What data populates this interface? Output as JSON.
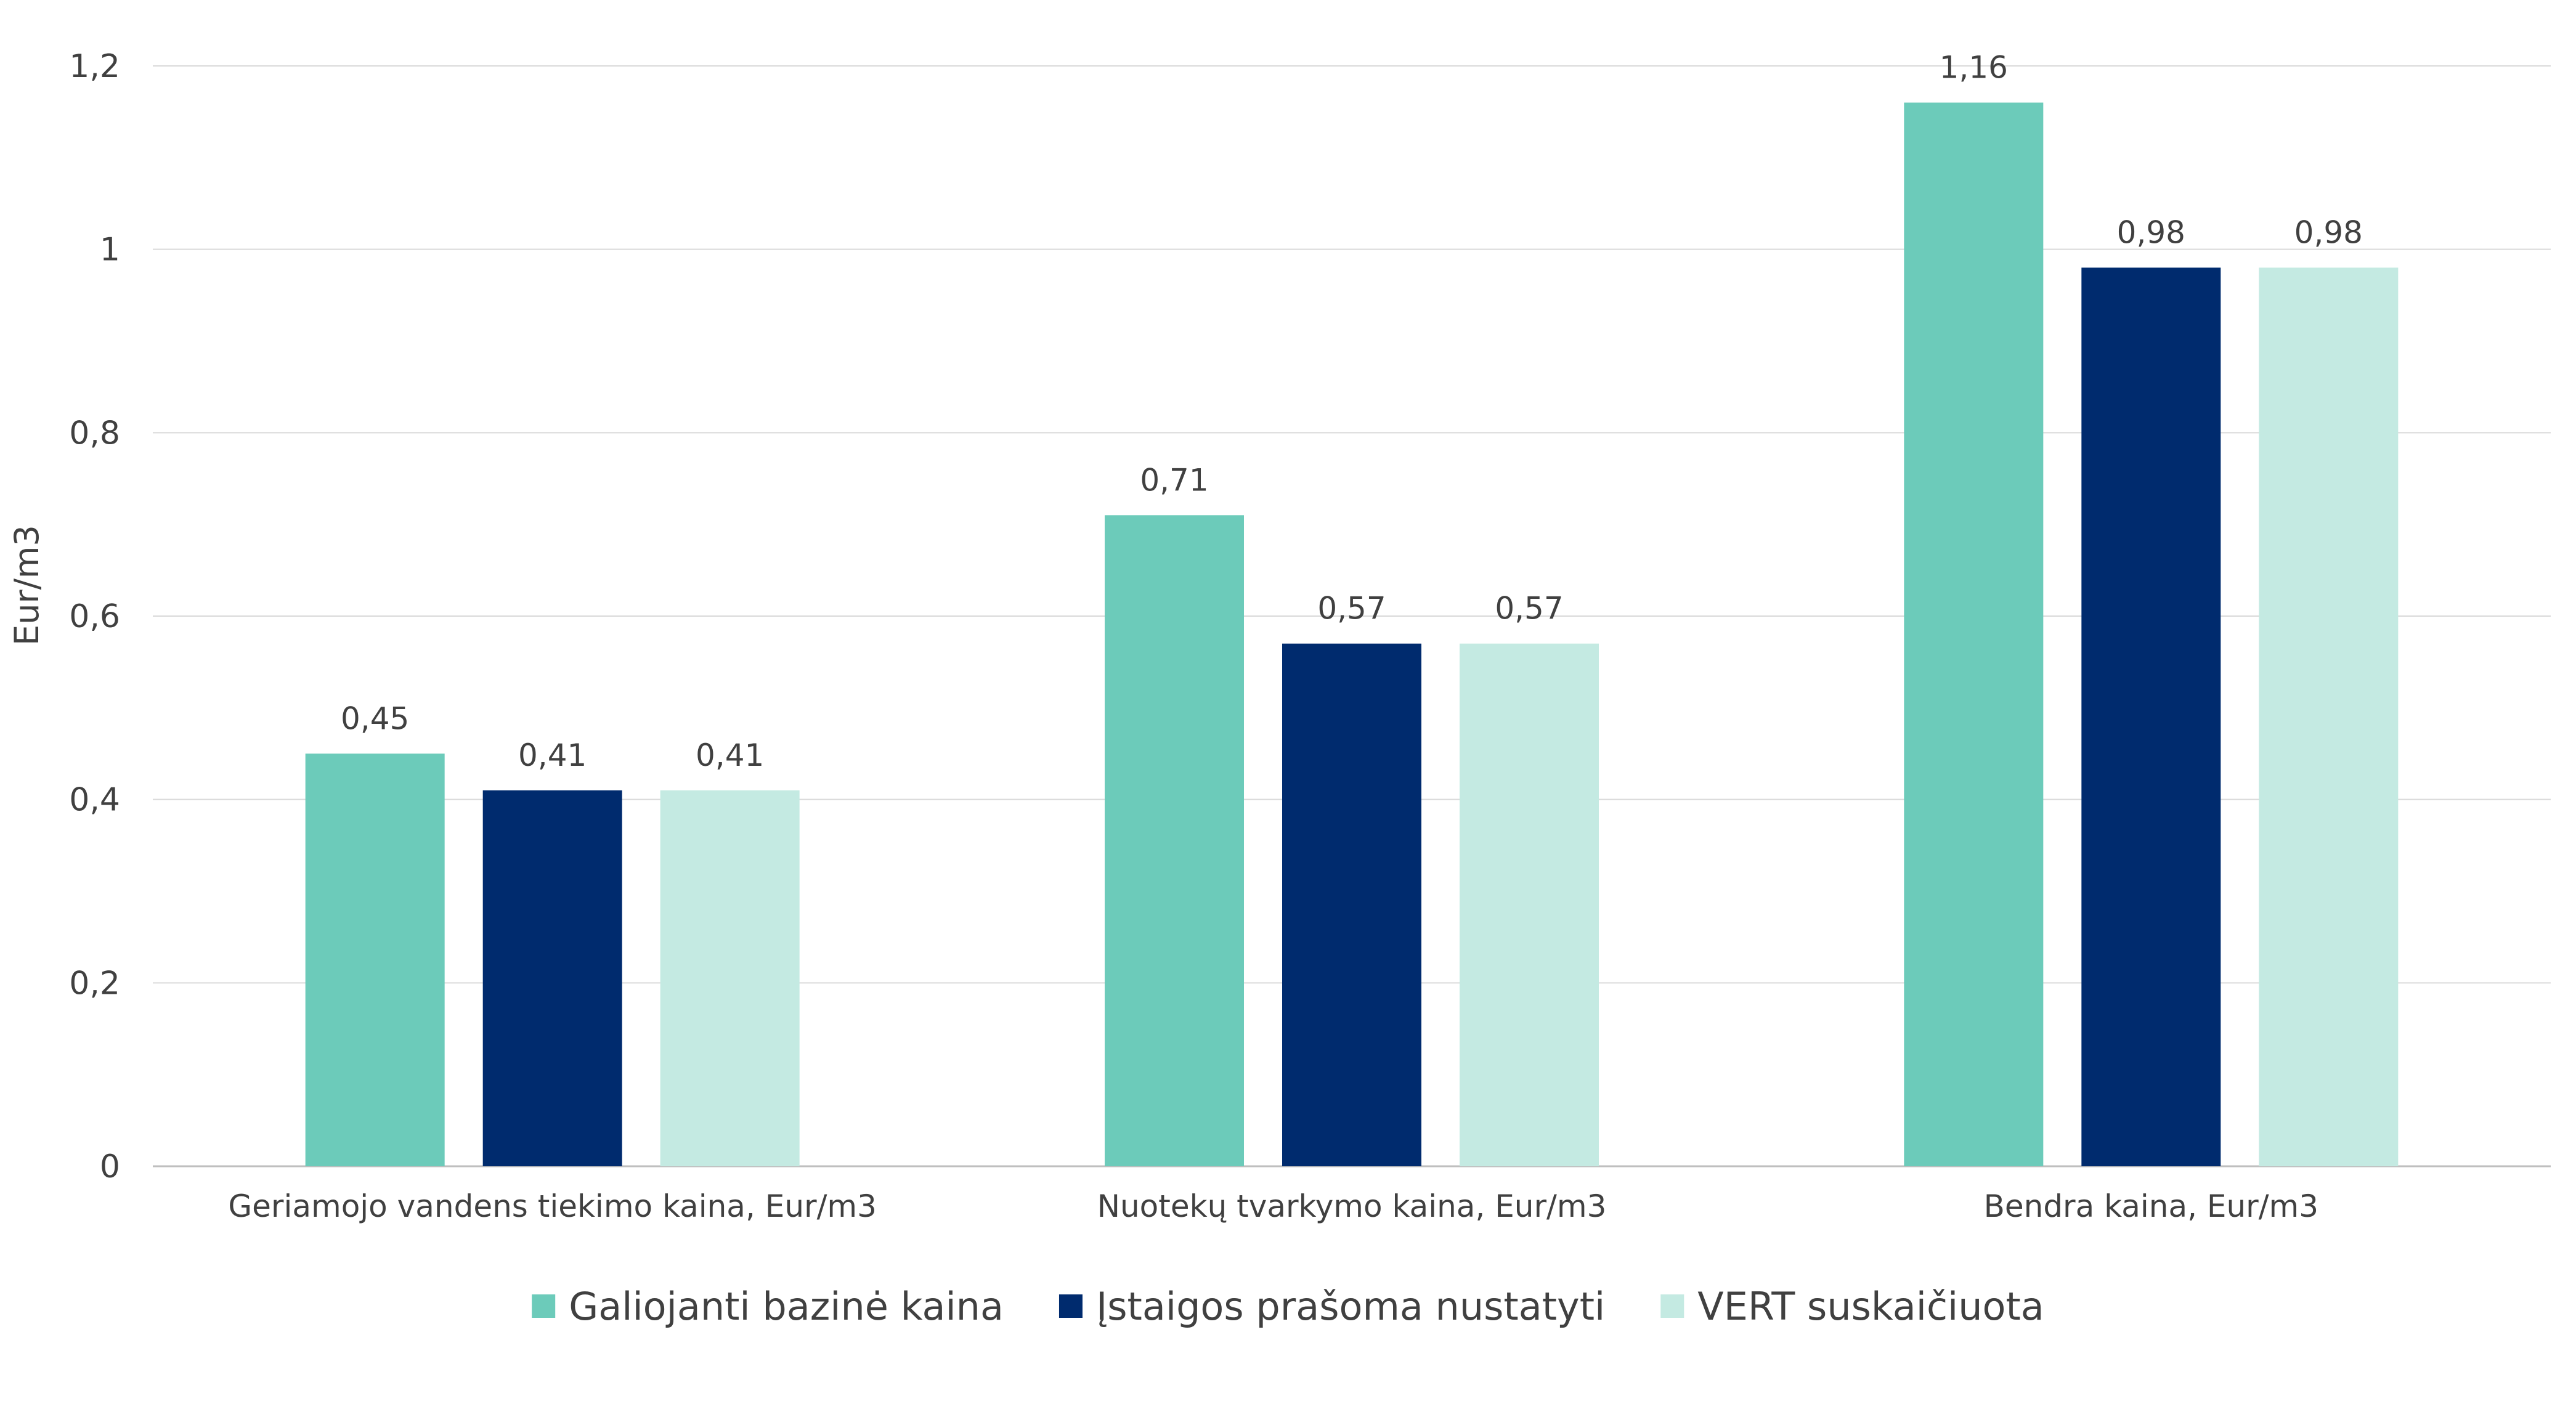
{
  "chart_data": {
    "type": "bar",
    "title": "",
    "xlabel": "",
    "ylabel": "Eur/m3",
    "ylim": [
      0,
      1.2
    ],
    "yticks": [
      "0",
      "0,2",
      "0,4",
      "0,6",
      "0,8",
      "1",
      "1,2"
    ],
    "ytick_values": [
      0,
      0.2,
      0.4,
      0.6,
      0.8,
      1.0,
      1.2
    ],
    "grid": true,
    "legend_position": "bottom",
    "categories": [
      "Geriamojo vandens tiekimo kaina, Eur/m3",
      "Nuotekų tvarkymo kaina, Eur/m3",
      "Bendra kaina, Eur/m3"
    ],
    "series": [
      {
        "name": "Galiojanti bazinė kaina",
        "color": "#6ccbba",
        "values": [
          0.45,
          0.71,
          1.16
        ],
        "labels": [
          "0,45",
          "0,71",
          "1,16"
        ]
      },
      {
        "name": "Įstaigos prašoma nustatyti",
        "color": "#002b6e",
        "values": [
          0.41,
          0.57,
          0.98
        ],
        "labels": [
          "0,41",
          "0,57",
          "0,98"
        ]
      },
      {
        "name": "VERT suskaičiuota",
        "color": "#c4eae2",
        "values": [
          0.41,
          0.57,
          0.98
        ],
        "labels": [
          "0,41",
          "0,57",
          "0,98"
        ]
      }
    ]
  }
}
